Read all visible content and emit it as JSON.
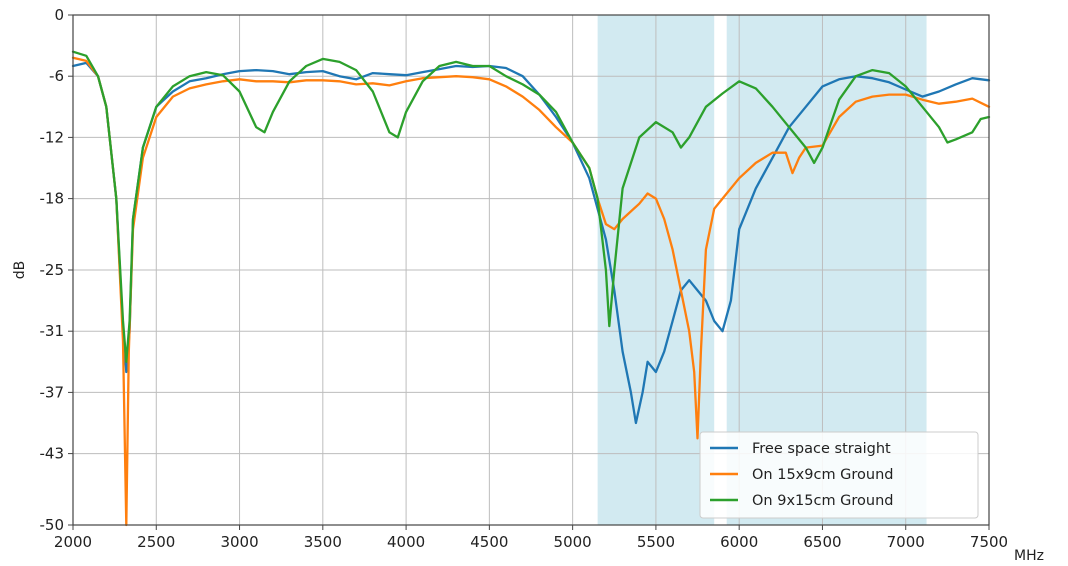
{
  "chart_data": {
    "type": "line",
    "title": "",
    "xlabel": "MHz",
    "ylabel": "dB",
    "xlim": [
      2000,
      7500
    ],
    "ylim": [
      -50,
      0
    ],
    "xticks": [
      2000,
      2500,
      3000,
      3500,
      4000,
      4500,
      5000,
      5500,
      6000,
      6500,
      7000,
      7500
    ],
    "yticks": [
      0,
      -6,
      -12,
      -18,
      -25,
      -31,
      -37,
      -43,
      -50
    ],
    "grid": true,
    "legend_position": "lower-right",
    "shaded_bands": [
      {
        "x_start": 5150,
        "x_end": 5850,
        "color": "#add8e6"
      },
      {
        "x_start": 5925,
        "x_end": 7125,
        "color": "#add8e6"
      }
    ],
    "series": [
      {
        "name": "Free space straight",
        "color": "#1f77b4",
        "points": [
          [
            2000,
            -5
          ],
          [
            2080,
            -4.7
          ],
          [
            2150,
            -6
          ],
          [
            2200,
            -9
          ],
          [
            2260,
            -18
          ],
          [
            2300,
            -31
          ],
          [
            2320,
            -35
          ],
          [
            2340,
            -31
          ],
          [
            2360,
            -20
          ],
          [
            2420,
            -13
          ],
          [
            2500,
            -9
          ],
          [
            2600,
            -7.5
          ],
          [
            2700,
            -6.5
          ],
          [
            2800,
            -6.2
          ],
          [
            2900,
            -5.8
          ],
          [
            3000,
            -5.5
          ],
          [
            3100,
            -5.4
          ],
          [
            3200,
            -5.5
          ],
          [
            3300,
            -5.8
          ],
          [
            3400,
            -5.6
          ],
          [
            3500,
            -5.5
          ],
          [
            3600,
            -6
          ],
          [
            3700,
            -6.3
          ],
          [
            3800,
            -5.7
          ],
          [
            3900,
            -5.8
          ],
          [
            4000,
            -5.9
          ],
          [
            4100,
            -5.6
          ],
          [
            4200,
            -5.3
          ],
          [
            4300,
            -5
          ],
          [
            4400,
            -5.1
          ],
          [
            4500,
            -5
          ],
          [
            4600,
            -5.2
          ],
          [
            4700,
            -6
          ],
          [
            4800,
            -7.8
          ],
          [
            4900,
            -10
          ],
          [
            5000,
            -12.5
          ],
          [
            5100,
            -16
          ],
          [
            5200,
            -22
          ],
          [
            5250,
            -27
          ],
          [
            5300,
            -33
          ],
          [
            5350,
            -37
          ],
          [
            5380,
            -40
          ],
          [
            5420,
            -37
          ],
          [
            5450,
            -34
          ],
          [
            5500,
            -35
          ],
          [
            5550,
            -33
          ],
          [
            5600,
            -30
          ],
          [
            5650,
            -27
          ],
          [
            5700,
            -26
          ],
          [
            5750,
            -27
          ],
          [
            5800,
            -28
          ],
          [
            5850,
            -30
          ],
          [
            5900,
            -31
          ],
          [
            5950,
            -28
          ],
          [
            6000,
            -21
          ],
          [
            6100,
            -17
          ],
          [
            6200,
            -14
          ],
          [
            6300,
            -11
          ],
          [
            6400,
            -9
          ],
          [
            6500,
            -7
          ],
          [
            6600,
            -6.3
          ],
          [
            6700,
            -6
          ],
          [
            6800,
            -6.2
          ],
          [
            6900,
            -6.6
          ],
          [
            7000,
            -7.3
          ],
          [
            7100,
            -8
          ],
          [
            7200,
            -7.5
          ],
          [
            7300,
            -6.8
          ],
          [
            7400,
            -6.2
          ],
          [
            7500,
            -6.4
          ]
        ]
      },
      {
        "name": "On 15x9cm Ground",
        "color": "#ff7f0e",
        "points": [
          [
            2000,
            -4.2
          ],
          [
            2080,
            -4.5
          ],
          [
            2150,
            -6
          ],
          [
            2200,
            -9
          ],
          [
            2260,
            -18
          ],
          [
            2300,
            -32
          ],
          [
            2320,
            -50
          ],
          [
            2335,
            -33
          ],
          [
            2360,
            -21
          ],
          [
            2420,
            -14
          ],
          [
            2500,
            -10
          ],
          [
            2600,
            -8
          ],
          [
            2700,
            -7.2
          ],
          [
            2800,
            -6.8
          ],
          [
            2900,
            -6.5
          ],
          [
            3000,
            -6.3
          ],
          [
            3100,
            -6.5
          ],
          [
            3200,
            -6.5
          ],
          [
            3300,
            -6.6
          ],
          [
            3400,
            -6.4
          ],
          [
            3500,
            -6.4
          ],
          [
            3600,
            -6.5
          ],
          [
            3700,
            -6.8
          ],
          [
            3800,
            -6.7
          ],
          [
            3900,
            -6.9
          ],
          [
            4000,
            -6.5
          ],
          [
            4100,
            -6.2
          ],
          [
            4200,
            -6.1
          ],
          [
            4300,
            -6
          ],
          [
            4400,
            -6.1
          ],
          [
            4500,
            -6.3
          ],
          [
            4600,
            -7
          ],
          [
            4700,
            -8
          ],
          [
            4800,
            -9.3
          ],
          [
            4900,
            -11
          ],
          [
            5000,
            -12.5
          ],
          [
            5100,
            -15
          ],
          [
            5150,
            -18
          ],
          [
            5200,
            -20.5
          ],
          [
            5250,
            -21
          ],
          [
            5300,
            -20
          ],
          [
            5400,
            -18.5
          ],
          [
            5450,
            -17.5
          ],
          [
            5500,
            -18
          ],
          [
            5550,
            -20
          ],
          [
            5600,
            -23
          ],
          [
            5650,
            -27
          ],
          [
            5700,
            -31
          ],
          [
            5730,
            -35
          ],
          [
            5750,
            -41.5
          ],
          [
            5770,
            -33
          ],
          [
            5800,
            -23
          ],
          [
            5850,
            -19
          ],
          [
            5900,
            -18
          ],
          [
            6000,
            -16
          ],
          [
            6100,
            -14.5
          ],
          [
            6200,
            -13.5
          ],
          [
            6280,
            -13.5
          ],
          [
            6320,
            -15.5
          ],
          [
            6360,
            -14
          ],
          [
            6400,
            -13
          ],
          [
            6500,
            -12.8
          ],
          [
            6600,
            -10
          ],
          [
            6700,
            -8.5
          ],
          [
            6800,
            -8
          ],
          [
            6900,
            -7.8
          ],
          [
            7000,
            -7.8
          ],
          [
            7100,
            -8.3
          ],
          [
            7200,
            -8.7
          ],
          [
            7300,
            -8.5
          ],
          [
            7400,
            -8.2
          ],
          [
            7500,
            -9
          ]
        ]
      },
      {
        "name": "On 9x15cm Ground",
        "color": "#2ca02c",
        "points": [
          [
            2000,
            -3.6
          ],
          [
            2080,
            -4
          ],
          [
            2150,
            -6
          ],
          [
            2200,
            -9
          ],
          [
            2260,
            -18
          ],
          [
            2300,
            -30
          ],
          [
            2320,
            -34
          ],
          [
            2340,
            -30
          ],
          [
            2360,
            -20
          ],
          [
            2420,
            -13
          ],
          [
            2500,
            -9
          ],
          [
            2600,
            -7
          ],
          [
            2700,
            -6
          ],
          [
            2800,
            -5.6
          ],
          [
            2900,
            -5.9
          ],
          [
            3000,
            -7.5
          ],
          [
            3100,
            -11
          ],
          [
            3150,
            -11.5
          ],
          [
            3200,
            -9.5
          ],
          [
            3300,
            -6.5
          ],
          [
            3400,
            -5
          ],
          [
            3500,
            -4.3
          ],
          [
            3600,
            -4.6
          ],
          [
            3700,
            -5.4
          ],
          [
            3800,
            -7.5
          ],
          [
            3900,
            -11.5
          ],
          [
            3950,
            -12
          ],
          [
            4000,
            -9.5
          ],
          [
            4100,
            -6.5
          ],
          [
            4200,
            -5
          ],
          [
            4300,
            -4.6
          ],
          [
            4400,
            -5
          ],
          [
            4500,
            -5
          ],
          [
            4600,
            -6
          ],
          [
            4700,
            -6.8
          ],
          [
            4800,
            -7.8
          ],
          [
            4900,
            -9.5
          ],
          [
            5000,
            -12.5
          ],
          [
            5100,
            -15
          ],
          [
            5150,
            -18
          ],
          [
            5200,
            -25
          ],
          [
            5220,
            -30.5
          ],
          [
            5250,
            -25
          ],
          [
            5300,
            -17
          ],
          [
            5400,
            -12
          ],
          [
            5500,
            -10.5
          ],
          [
            5600,
            -11.5
          ],
          [
            5650,
            -13
          ],
          [
            5700,
            -12
          ],
          [
            5800,
            -9
          ],
          [
            5900,
            -7.7
          ],
          [
            6000,
            -6.5
          ],
          [
            6100,
            -7.2
          ],
          [
            6200,
            -9
          ],
          [
            6300,
            -11
          ],
          [
            6400,
            -13
          ],
          [
            6450,
            -14.5
          ],
          [
            6500,
            -13
          ],
          [
            6600,
            -8.3
          ],
          [
            6700,
            -6
          ],
          [
            6800,
            -5.4
          ],
          [
            6900,
            -5.7
          ],
          [
            7000,
            -7
          ],
          [
            7100,
            -9
          ],
          [
            7200,
            -11
          ],
          [
            7250,
            -12.5
          ],
          [
            7300,
            -12.2
          ],
          [
            7400,
            -11.5
          ],
          [
            7450,
            -10.2
          ],
          [
            7500,
            -10
          ]
        ]
      }
    ]
  }
}
